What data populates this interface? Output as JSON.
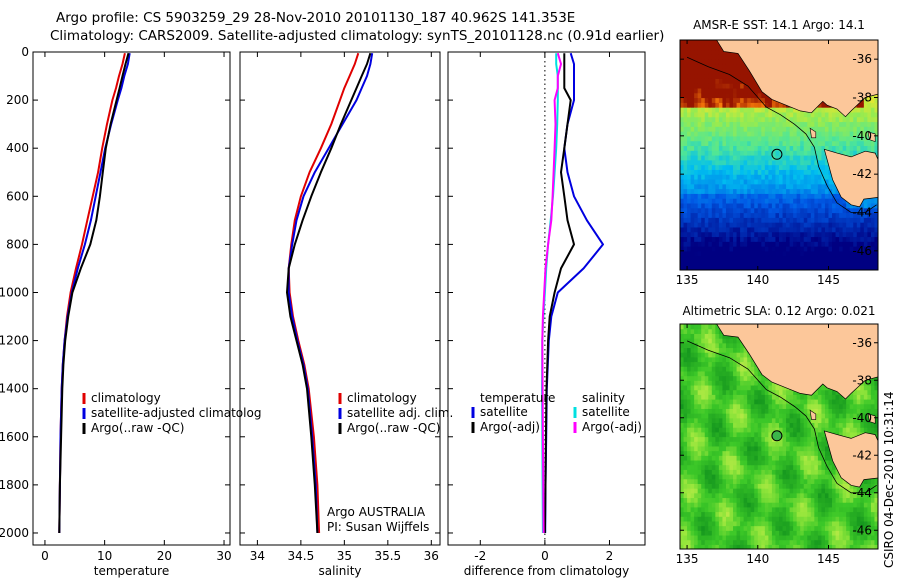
{
  "titles": {
    "line1": "Argo profile: CS 5903259_29 28-Nov-2010 20101130_187 40.962S 141.353E",
    "line2": "Climatology: CARS2009. Satellite-adjusted climatology: synTS_20101128.nc (0.91d earlier)"
  },
  "side_label": "CSIRO 04-Dec-2010 10:31:14",
  "colors": {
    "climatology": "#e00000",
    "satellite": "#0000e0",
    "argo": "#000000",
    "sal_satellite": "#00e0e0",
    "sal_argo": "#ff00ff"
  },
  "chart_data": [
    {
      "type": "line",
      "name": "temperature-profile",
      "xlabel": "temperature",
      "ylabel": "",
      "xlim": [
        -2,
        31
      ],
      "ylim": [
        2050,
        0
      ],
      "xticks": [
        0,
        10,
        20,
        30
      ],
      "yticks": [
        0,
        200,
        400,
        600,
        800,
        1000,
        1200,
        1400,
        1600,
        1800,
        2000
      ],
      "legend": [
        "climatology",
        "satellite-adjusted climatolog",
        "Argo(..raw -QC)"
      ],
      "depth": [
        5,
        50,
        100,
        150,
        200,
        300,
        400,
        500,
        600,
        700,
        800,
        900,
        1000,
        1100,
        1200,
        1300,
        1400,
        1600,
        1800,
        2000
      ],
      "series": [
        {
          "name": "climatology",
          "values": [
            13.4,
            13.0,
            12.4,
            11.9,
            11.3,
            10.4,
            9.6,
            8.9,
            8.0,
            7.1,
            6.2,
            5.2,
            4.3,
            3.7,
            3.3,
            3.0,
            2.8,
            2.6,
            2.5,
            2.4
          ]
        },
        {
          "name": "satellite-adjusted climatolog",
          "values": [
            14.2,
            13.9,
            13.3,
            12.8,
            12.2,
            11.1,
            10.1,
            9.3,
            8.5,
            7.7,
            6.7,
            5.5,
            4.5,
            3.8,
            3.3,
            3.0,
            2.8,
            2.6,
            2.5,
            2.4
          ]
        },
        {
          "name": "Argo(..raw -QC)",
          "values": [
            14.0,
            13.5,
            13.0,
            12.5,
            12.0,
            11.0,
            10.2,
            9.7,
            9.2,
            8.6,
            7.6,
            6.0,
            4.6,
            3.9,
            3.4,
            3.1,
            2.9,
            2.7,
            2.5,
            2.4
          ]
        }
      ]
    },
    {
      "type": "line",
      "name": "salinity-profile",
      "xlabel": "salinity",
      "xlim": [
        33.8,
        36.1
      ],
      "ylim": [
        2050,
        0
      ],
      "xticks": [
        34,
        34.5,
        35,
        35.5,
        36
      ],
      "legend": [
        "climatology",
        "satellite adj. clim.",
        "Argo(..raw -QC)"
      ],
      "annotation": [
        "Argo AUSTRALIA",
        "PI: Susan Wijffels"
      ],
      "depth": [
        5,
        50,
        100,
        150,
        200,
        300,
        400,
        500,
        600,
        700,
        800,
        900,
        1000,
        1100,
        1200,
        1300,
        1400,
        1600,
        1800,
        2000
      ],
      "series": [
        {
          "name": "climatology",
          "values": [
            35.16,
            35.12,
            35.06,
            35.0,
            34.95,
            34.85,
            34.73,
            34.6,
            34.5,
            34.43,
            34.39,
            34.36,
            34.37,
            34.41,
            34.47,
            34.54,
            34.59,
            34.65,
            34.69,
            34.71
          ]
        },
        {
          "name": "satellite adj. clim.",
          "values": [
            35.32,
            35.3,
            35.26,
            35.2,
            35.14,
            34.98,
            34.82,
            34.66,
            34.53,
            34.45,
            34.4,
            34.36,
            34.36,
            34.4,
            34.46,
            34.53,
            34.58,
            34.63,
            34.67,
            34.69
          ]
        },
        {
          "name": "Argo(..raw -QC)",
          "values": [
            35.3,
            35.26,
            35.2,
            35.14,
            35.08,
            34.96,
            34.85,
            34.73,
            34.62,
            34.52,
            34.43,
            34.36,
            34.34,
            34.38,
            34.45,
            34.52,
            34.57,
            34.62,
            34.66,
            34.69
          ]
        }
      ]
    },
    {
      "type": "line",
      "name": "difference-profile",
      "xlabel": "difference from climatology",
      "xlim": [
        -3,
        3.1
      ],
      "ylim": [
        2050,
        0
      ],
      "xticks": [
        -2,
        0,
        2
      ],
      "legend_headers": [
        "temperature",
        "salinity"
      ],
      "legend": [
        "satellite",
        "Argo(-adj)",
        "satellite",
        "Argo(-adj)"
      ],
      "depth": [
        5,
        50,
        100,
        150,
        200,
        300,
        400,
        500,
        600,
        700,
        800,
        900,
        1000,
        1100,
        1200,
        1400,
        1600,
        1800,
        2000
      ],
      "series": [
        {
          "name": "temperature satellite",
          "values": [
            0.8,
            0.9,
            0.9,
            0.9,
            0.9,
            0.7,
            0.6,
            0.7,
            0.9,
            1.3,
            1.8,
            1.2,
            0.4,
            0.2,
            0.12,
            0.06,
            0.04,
            0.02,
            0.01
          ]
        },
        {
          "name": "temperature Argo(-adj)",
          "values": [
            0.6,
            0.6,
            0.6,
            0.6,
            0.8,
            0.7,
            0.6,
            0.5,
            0.6,
            0.7,
            0.9,
            0.5,
            0.3,
            0.15,
            0.1,
            0.05,
            0.03,
            0.02,
            0.0
          ]
        },
        {
          "name": "salinity satellite",
          "values": [
            0.35,
            0.35,
            0.4,
            0.4,
            0.4,
            0.38,
            0.35,
            0.3,
            0.25,
            0.18,
            0.1,
            0.04,
            0.0,
            -0.05,
            -0.08,
            -0.09,
            -0.08,
            -0.07,
            -0.06
          ]
        },
        {
          "name": "salinity Argo(-adj)",
          "values": [
            0.4,
            0.5,
            0.4,
            0.4,
            0.3,
            0.33,
            0.3,
            0.27,
            0.24,
            0.2,
            0.1,
            0.02,
            -0.02,
            -0.06,
            -0.08,
            -0.07,
            -0.06,
            -0.05,
            -0.04
          ]
        }
      ]
    },
    {
      "type": "heatmap",
      "name": "sst-map",
      "title": "AMSR-E SST: 14.1 Argo: 14.1",
      "xlim": [
        134.5,
        148.5
      ],
      "ylim": [
        -47,
        -35
      ],
      "xticks": [
        135,
        140,
        145
      ],
      "yticks": [
        -36,
        -38,
        -40,
        -42,
        -44,
        -46
      ],
      "profile_location": {
        "lon": 141.353,
        "lat": -40.962
      }
    },
    {
      "type": "heatmap",
      "name": "sla-map",
      "title": "Altimetric SLA: 0.12 Argo: 0.021",
      "xlim": [
        134.5,
        148.5
      ],
      "ylim": [
        -47,
        -35
      ],
      "xticks": [
        135,
        140,
        145
      ],
      "yticks": [
        -36,
        -38,
        -40,
        -42,
        -44,
        -46
      ],
      "profile_location": {
        "lon": 141.353,
        "lat": -40.962
      }
    }
  ]
}
